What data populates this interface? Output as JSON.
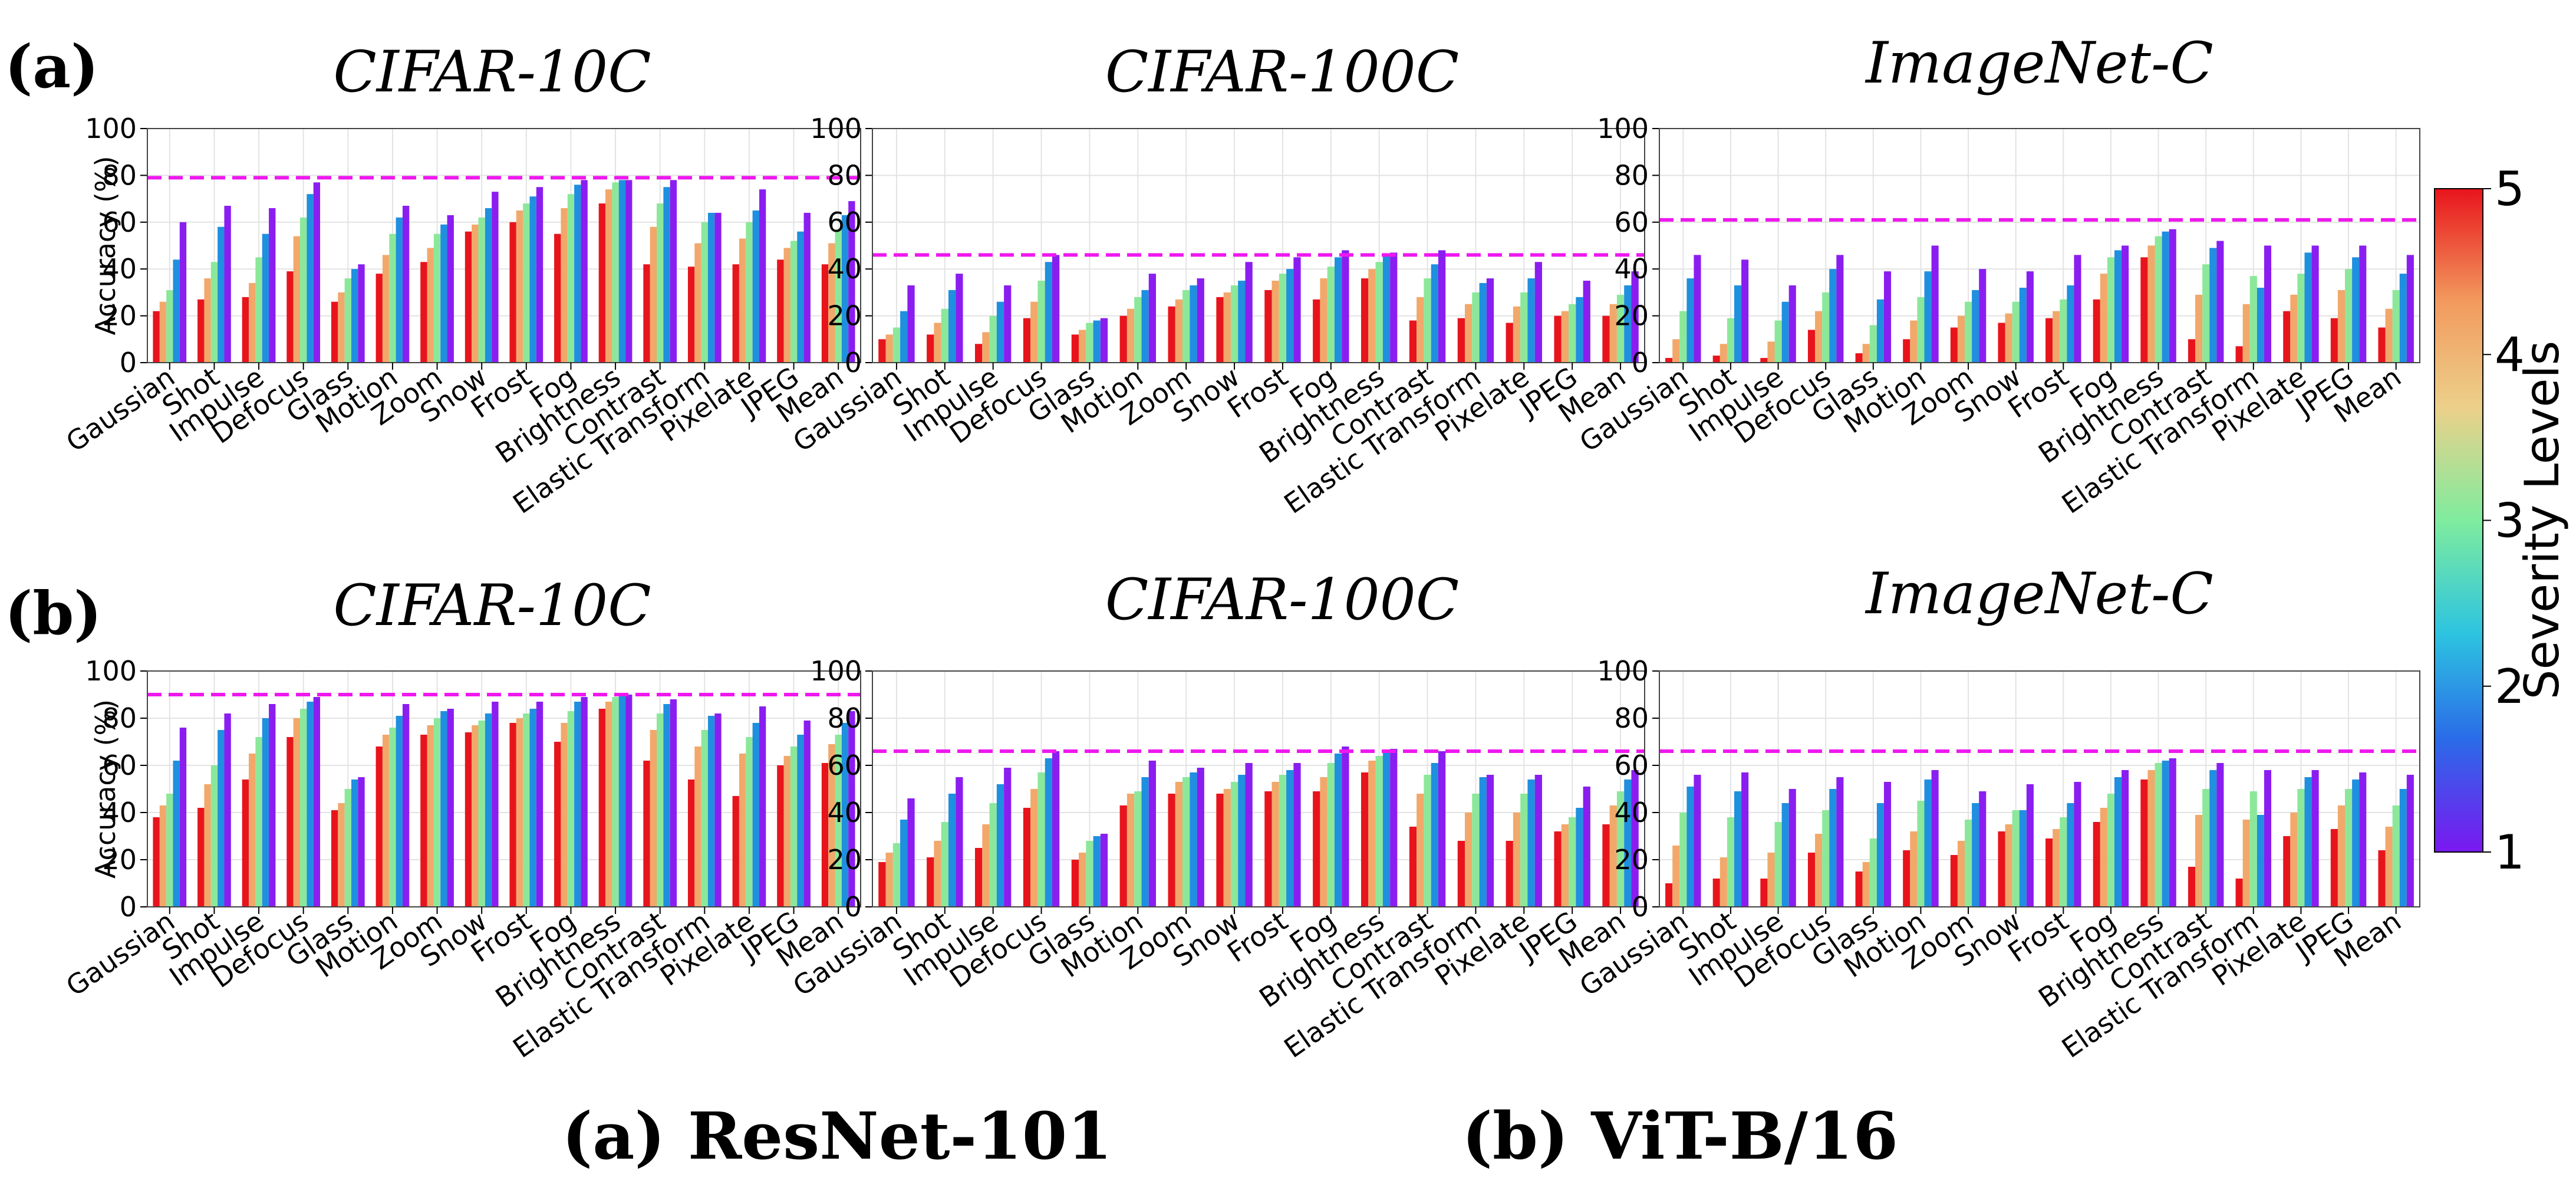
{
  "figure_captions": [
    "(a) ResNet-101",
    "(b) ViT-B/16"
  ],
  "row_labels": [
    "(a)",
    "(b)"
  ],
  "colorbar": {
    "label": "Severity Levels",
    "ticks": [
      "5",
      "4",
      "3",
      "2",
      "1"
    ],
    "colors": [
      "#e8141c",
      "#f29a5e",
      "#ecd08a",
      "#7fec9e",
      "#2dc4e0",
      "#2a6be8",
      "#7a18f0"
    ]
  },
  "severity_colors": {
    "5": "#e8141c",
    "4": "#f2a86a",
    "3": "#8be89a",
    "2": "#1f8fe0",
    "1": "#8a1ef0"
  },
  "baseline_color": "#ee18ee",
  "chart_data": [
    {
      "type": "bar",
      "title": "CIFAR-10C",
      "ylabel": "Accuracy (%)",
      "ylim": [
        0,
        100
      ],
      "yticks": [
        "0",
        "20",
        "40",
        "60",
        "80",
        "100"
      ],
      "grid": true,
      "categories": [
        "Gaussian",
        "Shot",
        "Impulse",
        "Defocus",
        "Glass",
        "Motion",
        "Zoom",
        "Snow",
        "Frost",
        "Fog",
        "Brightness",
        "Contrast",
        "Elastic Transform",
        "Pixelate",
        "JPEG",
        "Mean"
      ],
      "baseline": 79,
      "series": [
        {
          "values": [
            22,
            27,
            28,
            39,
            26,
            38,
            43,
            56,
            60,
            55,
            68,
            42,
            41,
            42,
            44,
            42
          ]
        },
        {
          "values": [
            26,
            36,
            34,
            54,
            30,
            46,
            49,
            59,
            65,
            66,
            74,
            58,
            51,
            53,
            49,
            51
          ]
        },
        {
          "values": [
            31,
            43,
            45,
            62,
            36,
            55,
            55,
            62,
            68,
            72,
            77,
            68,
            60,
            60,
            52,
            57
          ]
        },
        {
          "values": [
            44,
            58,
            55,
            72,
            40,
            62,
            59,
            66,
            71,
            76,
            78,
            75,
            64,
            65,
            56,
            63
          ]
        },
        {
          "values": [
            60,
            67,
            66,
            77,
            42,
            67,
            63,
            73,
            75,
            78,
            78,
            78,
            64,
            74,
            64,
            69
          ]
        }
      ]
    },
    {
      "type": "bar",
      "title": "CIFAR-100C",
      "ylabel": "",
      "ylim": [
        0,
        100
      ],
      "yticks": [
        "0",
        "20",
        "40",
        "60",
        "80",
        "100"
      ],
      "grid": true,
      "categories": [
        "Gaussian",
        "Shot",
        "Impulse",
        "Defocus",
        "Glass",
        "Motion",
        "Zoom",
        "Snow",
        "Frost",
        "Fog",
        "Brightness",
        "Contrast",
        "Elastic Transform",
        "Pixelate",
        "JPEG",
        "Mean"
      ],
      "baseline": 46,
      "series": [
        {
          "values": [
            10,
            12,
            8,
            19,
            12,
            20,
            24,
            28,
            31,
            27,
            36,
            18,
            19,
            17,
            20,
            20
          ]
        },
        {
          "values": [
            12,
            17,
            13,
            26,
            14,
            23,
            27,
            30,
            35,
            36,
            40,
            28,
            25,
            24,
            22,
            25
          ]
        },
        {
          "values": [
            15,
            23,
            20,
            35,
            17,
            28,
            31,
            33,
            38,
            41,
            43,
            36,
            30,
            30,
            25,
            29
          ]
        },
        {
          "values": [
            22,
            31,
            26,
            43,
            18,
            31,
            33,
            35,
            40,
            45,
            46,
            42,
            34,
            36,
            28,
            33
          ]
        },
        {
          "values": [
            33,
            38,
            33,
            46,
            19,
            38,
            36,
            43,
            45,
            48,
            47,
            48,
            36,
            43,
            35,
            39
          ]
        }
      ]
    },
    {
      "type": "bar",
      "title": "ImageNet-C",
      "ylabel": "",
      "ylim": [
        0,
        100
      ],
      "yticks": [
        "0",
        "20",
        "40",
        "60",
        "80",
        "100"
      ],
      "grid": true,
      "categories": [
        "Gaussian",
        "Shot",
        "Impulse",
        "Defocus",
        "Glass",
        "Motion",
        "Zoom",
        "Snow",
        "Frost",
        "Fog",
        "Brightness",
        "Contrast",
        "Elastic Transform",
        "Pixelate",
        "JPEG",
        "Mean"
      ],
      "baseline": 61,
      "series": [
        {
          "values": [
            2,
            3,
            2,
            14,
            4,
            10,
            15,
            17,
            19,
            27,
            45,
            10,
            7,
            22,
            19,
            15
          ]
        },
        {
          "values": [
            10,
            8,
            9,
            22,
            8,
            18,
            20,
            21,
            22,
            38,
            50,
            29,
            25,
            29,
            31,
            23
          ]
        },
        {
          "values": [
            22,
            19,
            18,
            30,
            16,
            28,
            26,
            26,
            27,
            45,
            54,
            42,
            37,
            38,
            40,
            31
          ]
        },
        {
          "values": [
            36,
            33,
            26,
            40,
            27,
            39,
            31,
            32,
            33,
            48,
            56,
            49,
            32,
            47,
            45,
            38
          ]
        },
        {
          "values": [
            46,
            44,
            33,
            46,
            39,
            50,
            40,
            39,
            46,
            50,
            57,
            52,
            50,
            50,
            50,
            46
          ]
        }
      ]
    },
    {
      "type": "bar",
      "title": "CIFAR-10C",
      "ylabel": "Accuracy (%)",
      "ylim": [
        0,
        100
      ],
      "yticks": [
        "0",
        "20",
        "40",
        "60",
        "80",
        "100"
      ],
      "grid": true,
      "categories": [
        "Gaussian",
        "Shot",
        "Impulse",
        "Defocus",
        "Glass",
        "Motion",
        "Zoom",
        "Snow",
        "Frost",
        "Fog",
        "Brightness",
        "Contrast",
        "Elastic Transform",
        "Pixelate",
        "JPEG",
        "Mean"
      ],
      "baseline": 90,
      "series": [
        {
          "values": [
            38,
            42,
            54,
            72,
            41,
            68,
            73,
            74,
            78,
            70,
            84,
            62,
            54,
            47,
            60,
            61
          ]
        },
        {
          "values": [
            43,
            52,
            65,
            80,
            44,
            73,
            77,
            77,
            80,
            78,
            87,
            75,
            68,
            65,
            64,
            69
          ]
        },
        {
          "values": [
            48,
            60,
            72,
            84,
            50,
            76,
            80,
            79,
            82,
            83,
            89,
            82,
            75,
            72,
            68,
            73
          ]
        },
        {
          "values": [
            62,
            75,
            80,
            87,
            54,
            81,
            83,
            82,
            84,
            87,
            90,
            86,
            81,
            78,
            73,
            78
          ]
        },
        {
          "values": [
            76,
            82,
            86,
            89,
            55,
            86,
            84,
            87,
            87,
            89,
            90,
            88,
            82,
            85,
            79,
            83
          ]
        }
      ]
    },
    {
      "type": "bar",
      "title": "CIFAR-100C",
      "ylabel": "",
      "ylim": [
        0,
        100
      ],
      "yticks": [
        "0",
        "20",
        "40",
        "60",
        "80",
        "100"
      ],
      "grid": true,
      "categories": [
        "Gaussian",
        "Shot",
        "Impulse",
        "Defocus",
        "Glass",
        "Motion",
        "Zoom",
        "Snow",
        "Frost",
        "Fog",
        "Brightness",
        "Contrast",
        "Elastic Transform",
        "Pixelate",
        "JPEG",
        "Mean"
      ],
      "baseline": 66,
      "series": [
        {
          "values": [
            19,
            21,
            25,
            42,
            20,
            43,
            48,
            48,
            49,
            49,
            57,
            34,
            28,
            28,
            32,
            35
          ]
        },
        {
          "values": [
            23,
            28,
            35,
            50,
            23,
            48,
            53,
            50,
            53,
            55,
            62,
            48,
            40,
            40,
            35,
            43
          ]
        },
        {
          "values": [
            27,
            36,
            44,
            57,
            28,
            49,
            55,
            53,
            56,
            61,
            64,
            56,
            48,
            48,
            38,
            49
          ]
        },
        {
          "values": [
            37,
            48,
            52,
            63,
            30,
            55,
            57,
            56,
            58,
            65,
            66,
            61,
            55,
            54,
            42,
            54
          ]
        },
        {
          "values": [
            46,
            55,
            59,
            66,
            31,
            62,
            59,
            61,
            61,
            68,
            67,
            66,
            56,
            56,
            51,
            58
          ]
        }
      ]
    },
    {
      "type": "bar",
      "title": "ImageNet-C",
      "ylabel": "",
      "ylim": [
        0,
        100
      ],
      "yticks": [
        "0",
        "20",
        "40",
        "60",
        "80",
        "100"
      ],
      "grid": true,
      "categories": [
        "Gaussian",
        "Shot",
        "Impulse",
        "Defocus",
        "Glass",
        "Motion",
        "Zoom",
        "Snow",
        "Frost",
        "Fog",
        "Brightness",
        "Contrast",
        "Elastic Transform",
        "Pixelate",
        "JPEG",
        "Mean"
      ],
      "baseline": 66,
      "series": [
        {
          "values": [
            10,
            12,
            12,
            23,
            15,
            24,
            22,
            32,
            29,
            36,
            54,
            17,
            12,
            30,
            33,
            24
          ]
        },
        {
          "values": [
            26,
            21,
            23,
            31,
            19,
            32,
            28,
            35,
            33,
            42,
            58,
            39,
            37,
            40,
            43,
            34
          ]
        },
        {
          "values": [
            40,
            38,
            36,
            41,
            29,
            45,
            37,
            41,
            38,
            48,
            61,
            50,
            49,
            50,
            50,
            43
          ]
        },
        {
          "values": [
            51,
            49,
            44,
            50,
            44,
            54,
            44,
            41,
            44,
            55,
            62,
            58,
            39,
            55,
            54,
            50
          ]
        },
        {
          "values": [
            56,
            57,
            50,
            55,
            53,
            58,
            49,
            52,
            53,
            58,
            63,
            61,
            58,
            58,
            57,
            56
          ]
        }
      ]
    }
  ]
}
